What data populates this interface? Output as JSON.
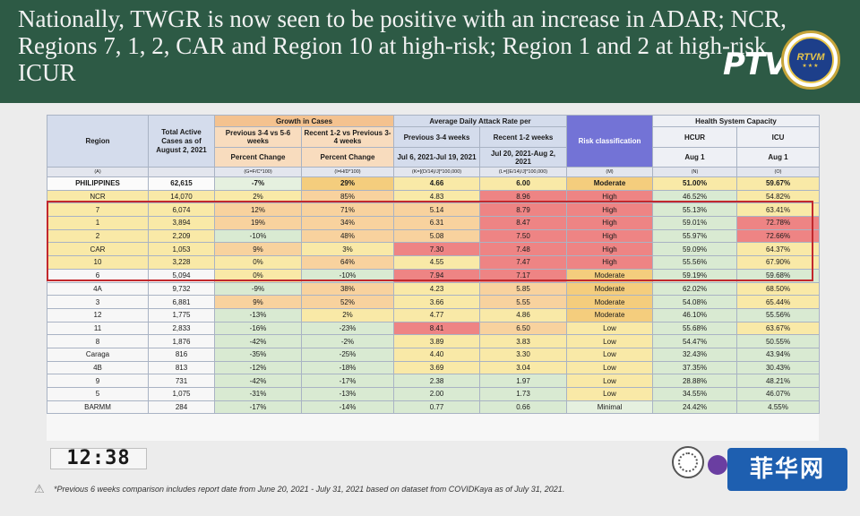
{
  "banner": {
    "title": "Nationally, TWGR is now seen to be positive with an increase in ADAR; NCR, Regions 7, 1, 2, CAR and Region 10 at high-risk; Region 1 and 2 at high-risk ICUR",
    "ptv_logo": "PTV",
    "seal_text": "RTVM"
  },
  "table": {
    "headers": {
      "region": "Region",
      "total_active": "Total Active Cases as of August 2, 2021",
      "growth": "Growth in Cases",
      "prev_3_4_vs_5_6": "Previous 3-4 vs 5-6 weeks",
      "recent_vs_prev": "Recent 1-2 vs Previous 3-4 weeks",
      "percent_change": "Percent Change",
      "adar": "Average Daily Attack Rate per",
      "prev_3_4_weeks": "Previous 3-4 weeks",
      "recent_1_2_weeks": "Recent 1-2 weeks",
      "prev_dates": "Jul 6, 2021-Jul 19, 2021",
      "recent_dates": "Jul 20, 2021-Aug 2, 2021",
      "risk": "Risk classification",
      "health": "Health System Capacity",
      "hcur": "HCUR",
      "icu": "ICU",
      "aug1": "Aug 1"
    },
    "codes": [
      "(A)",
      "",
      "(G=F/C*100)",
      "(I=H/D*100)",
      "(K=[(D/14)/J]*100,000)",
      "(L=[(E/14)/J]*100,000)",
      "(M)",
      "(N)",
      "(O)"
    ],
    "rows": [
      {
        "region": "PHILIPPINES",
        "cases": "62,615",
        "g": "-7%",
        "i": "29%",
        "k": "4.66",
        "l": "6.00",
        "risk": "Moderate",
        "hcur": "51.00%",
        "icu": "59.67%"
      },
      {
        "region": "NCR",
        "cases": "14,070",
        "g": "2%",
        "i": "85%",
        "k": "4.83",
        "l": "8.96",
        "risk": "High",
        "hcur": "46.52%",
        "icu": "54.82%"
      },
      {
        "region": "7",
        "cases": "6,074",
        "g": "12%",
        "i": "71%",
        "k": "5.14",
        "l": "8.79",
        "risk": "High",
        "hcur": "55.13%",
        "icu": "63.41%"
      },
      {
        "region": "1",
        "cases": "3,894",
        "g": "19%",
        "i": "34%",
        "k": "6.31",
        "l": "8.47",
        "risk": "High",
        "hcur": "59.01%",
        "icu": "72.78%"
      },
      {
        "region": "2",
        "cases": "2,209",
        "g": "-10%",
        "i": "48%",
        "k": "5.08",
        "l": "7.50",
        "risk": "High",
        "hcur": "55.97%",
        "icu": "72.66%"
      },
      {
        "region": "CAR",
        "cases": "1,053",
        "g": "9%",
        "i": "3%",
        "k": "7.30",
        "l": "7.48",
        "risk": "High",
        "hcur": "59.09%",
        "icu": "64.37%"
      },
      {
        "region": "10",
        "cases": "3,228",
        "g": "0%",
        "i": "64%",
        "k": "4.55",
        "l": "7.47",
        "risk": "High",
        "hcur": "55.56%",
        "icu": "67.90%"
      },
      {
        "region": "6",
        "cases": "5,094",
        "g": "0%",
        "i": "-10%",
        "k": "7.94",
        "l": "7.17",
        "risk": "Moderate",
        "hcur": "59.19%",
        "icu": "59.68%"
      },
      {
        "region": "4A",
        "cases": "9,732",
        "g": "-9%",
        "i": "38%",
        "k": "4.23",
        "l": "5.85",
        "risk": "Moderate",
        "hcur": "62.02%",
        "icu": "68.50%"
      },
      {
        "region": "3",
        "cases": "6,881",
        "g": "9%",
        "i": "52%",
        "k": "3.66",
        "l": "5.55",
        "risk": "Moderate",
        "hcur": "54.08%",
        "icu": "65.44%"
      },
      {
        "region": "12",
        "cases": "1,775",
        "g": "-13%",
        "i": "2%",
        "k": "4.77",
        "l": "4.86",
        "risk": "Moderate",
        "hcur": "46.10%",
        "icu": "55.56%"
      },
      {
        "region": "11",
        "cases": "2,833",
        "g": "-16%",
        "i": "-23%",
        "k": "8.41",
        "l": "6.50",
        "risk": "Low",
        "hcur": "55.68%",
        "icu": "63.67%"
      },
      {
        "region": "8",
        "cases": "1,876",
        "g": "-42%",
        "i": "-2%",
        "k": "3.89",
        "l": "3.83",
        "risk": "Low",
        "hcur": "54.47%",
        "icu": "50.55%"
      },
      {
        "region": "Caraga",
        "cases": "816",
        "g": "-35%",
        "i": "-25%",
        "k": "4.40",
        "l": "3.30",
        "risk": "Low",
        "hcur": "32.43%",
        "icu": "43.94%"
      },
      {
        "region": "4B",
        "cases": "813",
        "g": "-12%",
        "i": "-18%",
        "k": "3.69",
        "l": "3.04",
        "risk": "Low",
        "hcur": "37.35%",
        "icu": "30.43%"
      },
      {
        "region": "9",
        "cases": "731",
        "g": "-42%",
        "i": "-17%",
        "k": "2.38",
        "l": "1.97",
        "risk": "Low",
        "hcur": "28.88%",
        "icu": "48.21%"
      },
      {
        "region": "5",
        "cases": "1,075",
        "g": "-31%",
        "i": "-13%",
        "k": "2.00",
        "l": "1.73",
        "risk": "Low",
        "hcur": "34.55%",
        "icu": "46.07%"
      },
      {
        "region": "BARMM",
        "cases": "284",
        "g": "-17%",
        "i": "-14%",
        "k": "0.77",
        "l": "0.66",
        "risk": "Minimal",
        "hcur": "24.42%",
        "icu": "4.55%"
      }
    ]
  },
  "clock": "12:38",
  "footnote": "*Previous 6 weeks comparison includes report date from June 20, 2021 - July 31, 2021 based on dataset from COVIDKaya as of July 31, 2021.",
  "watermark": "菲华网",
  "colors": {
    "banner": "#2d5a45",
    "high": "#ee8484",
    "moderate": "#f9e9a7",
    "low": "#d9ead2",
    "highlight_box": "#c2282d"
  }
}
